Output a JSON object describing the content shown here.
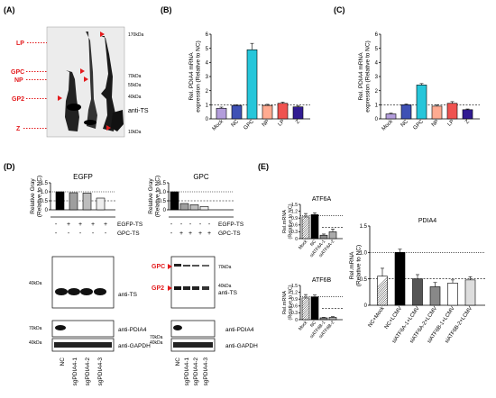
{
  "panels": {
    "A": "(A)",
    "B": "(B)",
    "C": "(C)",
    "D": "(D)",
    "E": "(E)"
  },
  "blotA": {
    "bands": [
      "LP",
      "GPC",
      "NP",
      "GP2",
      "Z"
    ],
    "mw": [
      "170kDa",
      "70kDa",
      "55kDa",
      "40kDa",
      "10kDa"
    ],
    "label": "anti-TS"
  },
  "chartB": {
    "ylabel": "Rel. PDIA4 mRNA\nexpression (Relative to NC)",
    "categories": [
      "Mock",
      "NC",
      "GPC",
      "NP",
      "LP",
      "Z"
    ],
    "values": [
      0.75,
      0.95,
      4.9,
      0.95,
      1.1,
      0.85
    ],
    "errors": [
      0.08,
      0.05,
      0.45,
      0.08,
      0.08,
      0.06
    ],
    "ylim": [
      0,
      6
    ],
    "ticks": [
      "0",
      "1",
      "2",
      "3",
      "4",
      "5",
      "6"
    ],
    "colors": [
      "#b39ddb",
      "#3f51b5",
      "#26c6da",
      "#ffab91",
      "#ef5350",
      "#311b92"
    ]
  },
  "chartC": {
    "ylabel": "Rel. PDIA4 mRNA\nexpression (Relative to NC)",
    "categories": [
      "Mock",
      "NC",
      "GPC",
      "NP",
      "LP",
      "Z"
    ],
    "values": [
      0.35,
      1.0,
      2.4,
      0.9,
      1.1,
      0.65
    ],
    "errors": [
      0.05,
      0.05,
      0.1,
      0.08,
      0.12,
      0.05
    ],
    "ylim": [
      0,
      6
    ],
    "ticks": [
      "0",
      "1",
      "2",
      "3",
      "4",
      "5",
      "6"
    ],
    "colors": [
      "#b39ddb",
      "#3f51b5",
      "#26c6da",
      "#ffab91",
      "#ef5350",
      "#311b92"
    ]
  },
  "chartD1": {
    "title": "EGFP",
    "ylabel": "Relative Gray\n(Relative to NC)",
    "values": [
      1.0,
      0.95,
      0.93,
      0.65
    ],
    "ylim": [
      0,
      1.5
    ],
    "ticks": [
      "0",
      "0.5",
      "1.0",
      "1.5"
    ],
    "colors": [
      "#000000",
      "#9e9e9e",
      "#bdbdbd",
      "#eeeeee"
    ]
  },
  "chartD2": {
    "title": "GPC",
    "ylabel": "Relative Gray\n(Relative to NC)",
    "values": [
      1.0,
      0.35,
      0.28,
      0.18
    ],
    "ylim": [
      0,
      1.5
    ],
    "ticks": [
      "0",
      "0.5",
      "1.0",
      "1.5"
    ],
    "colors": [
      "#000000",
      "#9e9e9e",
      "#bdbdbd",
      "#eeeeee"
    ]
  },
  "tableD": {
    "rowlabels": [
      "EGFP-TS",
      "GPC-TS"
    ],
    "left": [
      [
        "-",
        "+",
        "+",
        "+",
        "+"
      ],
      [
        "-",
        "-",
        "-",
        "-",
        "-"
      ]
    ],
    "right": [
      [
        "-",
        "-",
        "-",
        "-",
        "-"
      ],
      [
        "-",
        "+",
        "+",
        "+",
        "+"
      ]
    ]
  },
  "blotD": {
    "mw_left": [
      "40kDa",
      "70kDa",
      "40kDa"
    ],
    "mw_right": [
      "70kDa",
      "40kDa",
      "70kDa",
      "40kDa"
    ],
    "bands_right": [
      "GPC",
      "GP2"
    ],
    "labels": [
      "anti-TS",
      "anti-PDIA4",
      "anti-GAPDH"
    ],
    "lanes": [
      "NC",
      "sgPDIA4-1",
      "sgPDIA4-2",
      "sgPDIA4-3"
    ]
  },
  "chartE1": {
    "title": "ATF6A",
    "ylabel": "Rel.mRNA\n(Relative to NC)",
    "categories": [
      "Mock",
      "NC",
      "siATF6A-1",
      "siATF6A-2"
    ],
    "values": [
      0.95,
      1.05,
      0.15,
      0.3
    ],
    "errors": [
      0.15,
      0.08,
      0.05,
      0.12
    ],
    "ylim": [
      0,
      1.5
    ],
    "ticks": [
      "0",
      "0.3",
      "0.6",
      "0.9",
      "1.2",
      "1.5"
    ]
  },
  "chartE2": {
    "title": "ATF6B",
    "ylabel": "Rel.mRNA\n(Relative to NC)",
    "categories": [
      "Mock",
      "NC",
      "siATF6B-1",
      "siATF6B-2"
    ],
    "values": [
      0.95,
      1.0,
      0.08,
      0.1
    ],
    "errors": [
      0.15,
      0.08,
      0.02,
      0.03
    ],
    "ylim": [
      0,
      1.5
    ],
    "ticks": [
      "0",
      "0.3",
      "0.6",
      "0.9",
      "1.2",
      "1.5"
    ]
  },
  "chartE3": {
    "title": "PDIA4",
    "ylabel": "Rel.mRNA\n(Relative to NC)",
    "categories": [
      "NC+Mock",
      "NC+LCMV",
      "siATF6A-1+LCMV",
      "siATF6A-2+LCMV",
      "siATF6B-1+LCMV",
      "siATF6B-2+LCMV"
    ],
    "values": [
      0.55,
      1.0,
      0.5,
      0.35,
      0.42,
      0.48
    ],
    "errors": [
      0.15,
      0.06,
      0.08,
      0.08,
      0.06,
      0.06
    ],
    "ylim": [
      0,
      1.5
    ],
    "ticks": [
      "0",
      "0.5",
      "1.0",
      "1.5"
    ]
  }
}
